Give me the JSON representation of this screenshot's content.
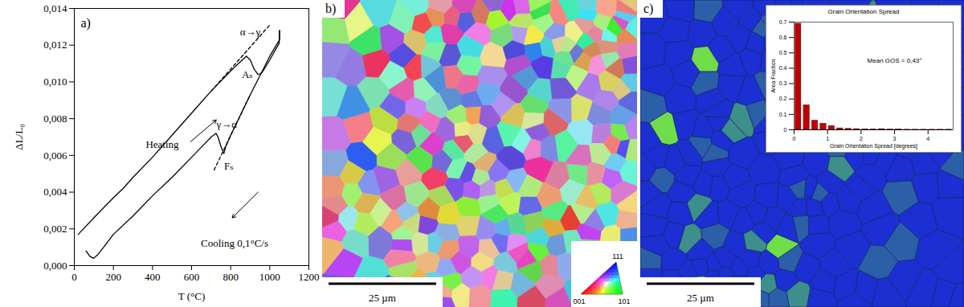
{
  "chart_data": [
    {
      "type": "line",
      "x_label": "T (°C)",
      "y_label": "ΔL/L₀",
      "xlim": [
        0,
        1200
      ],
      "xticks": [
        0,
        200,
        400,
        600,
        800,
        1000,
        1200
      ],
      "ylim": [
        0,
        0.014
      ],
      "yticks": [
        {
          "value": 0,
          "label": "0,000"
        },
        {
          "value": 0.002,
          "label": "0,002"
        },
        {
          "value": 0.004,
          "label": "0,004"
        },
        {
          "value": 0.006,
          "label": "0,006"
        },
        {
          "value": 0.008,
          "label": "0,008"
        },
        {
          "value": 0.01,
          "label": "0,010"
        },
        {
          "value": 0.012,
          "label": "0,012"
        },
        {
          "value": 0.014,
          "label": "0,014"
        }
      ],
      "series": [
        {
          "color": "#000000",
          "line_style": "solid",
          "x": [
            20,
            100,
            200,
            250,
            300,
            400,
            500,
            600,
            700,
            800,
            850,
            880,
            900,
            920,
            940,
            960,
            1000,
            1048,
            1050
          ],
          "values": [
            0.0017,
            0.0026,
            0.0037,
            0.0042,
            0.0048,
            0.0059,
            0.0071,
            0.0083,
            0.0095,
            0.0106,
            0.0111,
            0.0114,
            0.0112,
            0.0107,
            0.0104,
            0.0105,
            0.0112,
            0.0121,
            0.0128
          ]
        },
        {
          "color": "#000000",
          "line_style": "solid",
          "x": [
            1050,
            1050,
            1000,
            900,
            800,
            775,
            765,
            750,
            735,
            725,
            700,
            600,
            500,
            400,
            300,
            200,
            150,
            120,
            100,
            80,
            60
          ],
          "values": [
            0.0128,
            0.0123,
            0.0114,
            0.0093,
            0.0071,
            0.0065,
            0.0061,
            0.0065,
            0.007,
            0.0072,
            0.007,
            0.0059,
            0.0048,
            0.0038,
            0.0027,
            0.0017,
            0.001,
            0.0006,
            0.0004,
            0.0005,
            0.0008
          ]
        },
        {
          "color": "#000000",
          "line_style": "dashed",
          "x": [
            700,
            1000
          ],
          "values": [
            0.0095,
            0.0131
          ]
        },
        {
          "color": "#000000",
          "line_style": "dashed",
          "x": [
            715,
            900
          ],
          "values": [
            0.0052,
            0.0093
          ]
        }
      ],
      "annotations": [
        {
          "text": "α→γ",
          "x": 900,
          "y": 0.0127
        },
        {
          "text": "Aₛ",
          "x": 885,
          "y": 0.0104
        },
        {
          "text": "γ→α",
          "x": 780,
          "y": 0.0077
        },
        {
          "text": "Fₛ",
          "x": 790,
          "y": 0.0054
        },
        {
          "text": "Heating",
          "x": 450,
          "y": 0.0066
        },
        {
          "text": "Cooling 0,1°C/s",
          "x": 820,
          "y": 0.0012
        }
      ]
    },
    {
      "type": "histogram",
      "title": "Grain Orientation Spread",
      "x_label": "Grain Orientation Spread [degrees]",
      "y_label": "Area Fraction",
      "bins": [
        0,
        0.25,
        0.5,
        0.75,
        1,
        1.25,
        1.5,
        1.75,
        2,
        2.25,
        2.5,
        2.75,
        3,
        3.25,
        3.5,
        3.75,
        4,
        4.25,
        4.5,
        4.75
      ],
      "values": [
        0.69,
        0.16,
        0.06,
        0.04,
        0.025,
        0.01,
        0.007,
        0.005,
        0.004,
        0.003,
        0.005,
        0.002,
        0.002,
        0.001,
        0.001,
        0.001,
        0.001,
        0.001,
        0.001
      ],
      "color": "#c00000",
      "xlim": [
        0,
        4.75
      ],
      "xticks": [
        0,
        1,
        2,
        3,
        4
      ],
      "ylim": [
        0,
        0.7
      ],
      "yticks": [
        0,
        0.1,
        0.2,
        0.3,
        0.4,
        0.5,
        0.6,
        0.7
      ],
      "annotations": [
        {
          "text": "Mean GOS = 0,43°",
          "x": 3,
          "y": 0.45
        }
      ]
    }
  ],
  "figure": {
    "panel_labels": [
      "a)",
      "b)",
      "c)"
    ],
    "scale_bar": "25 µm",
    "ipf_legend": [
      "111",
      "001",
      "101"
    ]
  }
}
